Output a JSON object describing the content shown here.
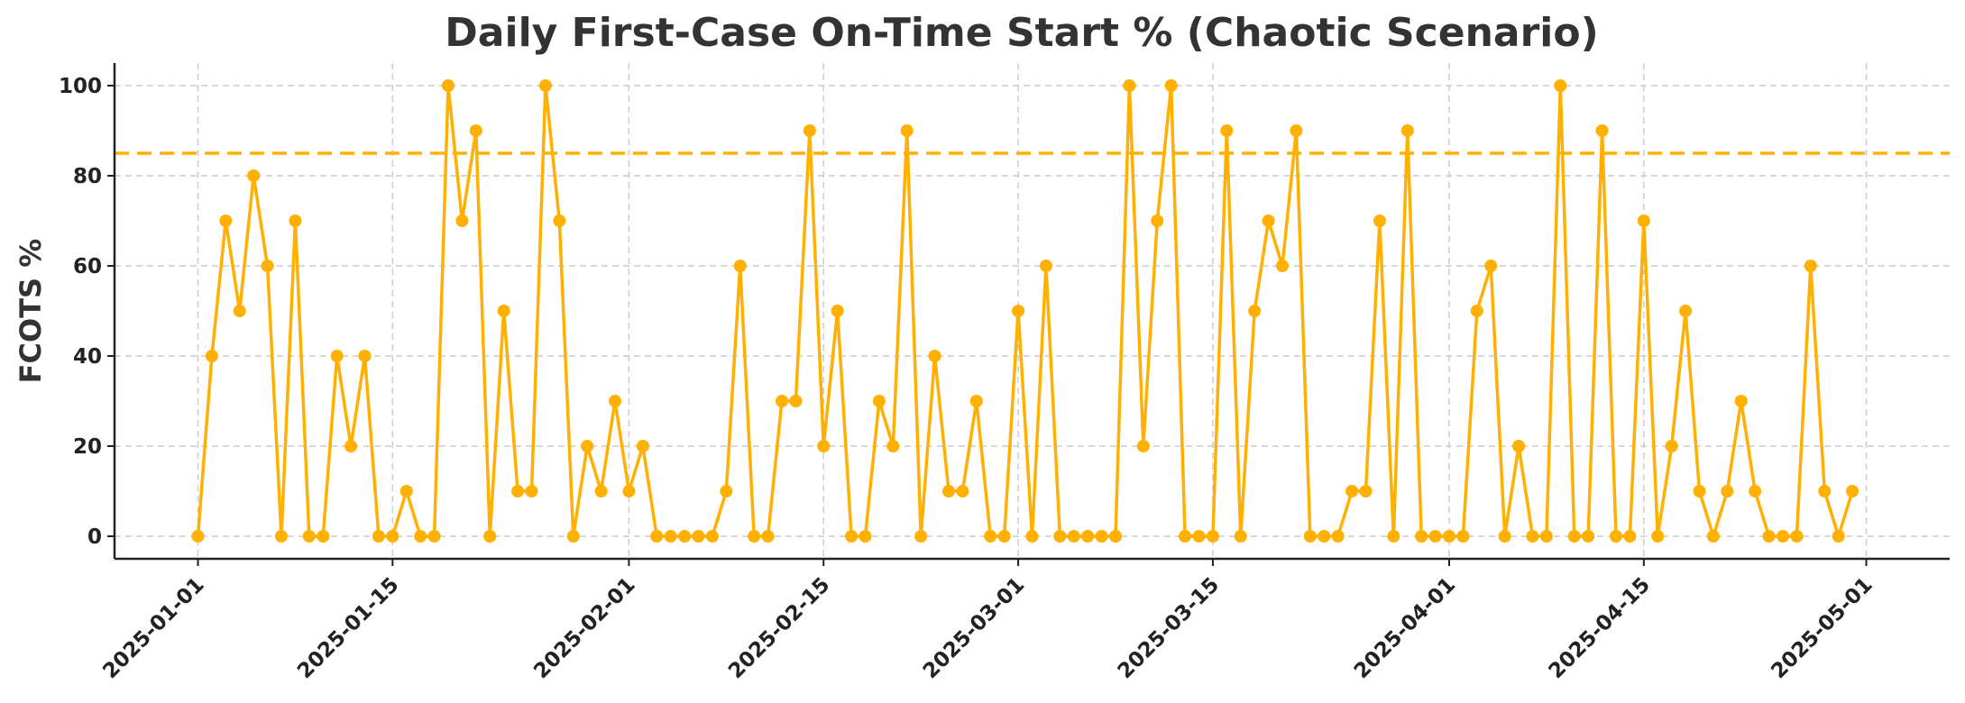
{
  "chart_data": {
    "type": "line",
    "title": "Daily First-Case On-Time Start % (Chaotic Scenario)",
    "xlabel": "",
    "ylabel": "FCOTS %",
    "x_start": "2025-01-01",
    "xlim": [
      "2024-12-26",
      "2025-05-07"
    ],
    "ylim": [
      -5,
      105
    ],
    "yticks": [
      0,
      20,
      40,
      60,
      80,
      100
    ],
    "xticks": [
      "2025-01-01",
      "2025-01-15",
      "2025-02-01",
      "2025-02-15",
      "2025-03-01",
      "2025-03-15",
      "2025-04-01",
      "2025-04-15",
      "2025-05-01"
    ],
    "grid": true,
    "series": [
      {
        "color": "#FFB000",
        "values": [
          0,
          40,
          70,
          50,
          80,
          60,
          0,
          70,
          0,
          0,
          40,
          20,
          40,
          0,
          0,
          10,
          0,
          0,
          100,
          70,
          90,
          0,
          50,
          10,
          10,
          100,
          70,
          0,
          20,
          10,
          30,
          10,
          20,
          0,
          0,
          0,
          0,
          0,
          10,
          60,
          0,
          0,
          30,
          30,
          90,
          20,
          50,
          0,
          0,
          30,
          20,
          90,
          0,
          40,
          10,
          10,
          30,
          0,
          0,
          50,
          0,
          60,
          0,
          0,
          0,
          0,
          0,
          100,
          20,
          70,
          100,
          0,
          0,
          0,
          90,
          0,
          50,
          70,
          60,
          90,
          0,
          0,
          0,
          10,
          10,
          70,
          0,
          90,
          0,
          0,
          0,
          0,
          50,
          60,
          0,
          20,
          0,
          0,
          100,
          0,
          0,
          90,
          0,
          0,
          70,
          0,
          20,
          50,
          10,
          0,
          10,
          30,
          10,
          0,
          0,
          0,
          60,
          10,
          0,
          10
        ]
      }
    ],
    "reference_line": {
      "y": 85,
      "color": "#FFB000",
      "style": "dashed"
    }
  }
}
